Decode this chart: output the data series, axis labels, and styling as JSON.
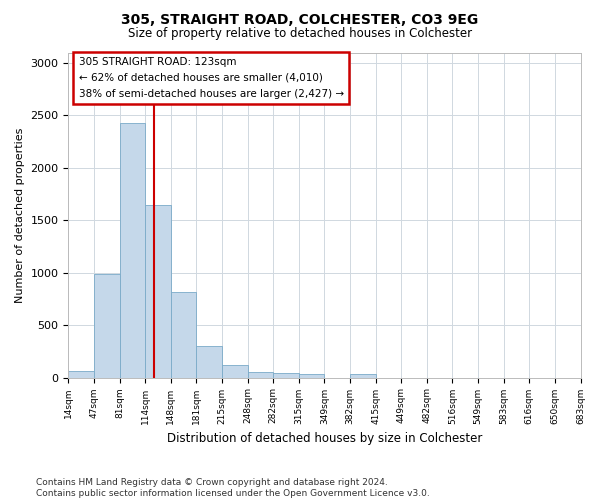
{
  "title": "305, STRAIGHT ROAD, COLCHESTER, CO3 9EG",
  "subtitle": "Size of property relative to detached houses in Colchester",
  "xlabel": "Distribution of detached houses by size in Colchester",
  "ylabel": "Number of detached properties",
  "bar_values": [
    60,
    990,
    2430,
    1650,
    820,
    300,
    120,
    50,
    45,
    30,
    0,
    35,
    0,
    0,
    0,
    0,
    0,
    0,
    0,
    0
  ],
  "bin_labels": [
    "14sqm",
    "47sqm",
    "81sqm",
    "114sqm",
    "148sqm",
    "181sqm",
    "215sqm",
    "248sqm",
    "282sqm",
    "315sqm",
    "349sqm",
    "382sqm",
    "415sqm",
    "449sqm",
    "482sqm",
    "516sqm",
    "549sqm",
    "583sqm",
    "616sqm",
    "650sqm",
    "683sqm"
  ],
  "bar_color": "#c5d8ea",
  "bar_edgecolor": "#7aaac8",
  "ylim": [
    0,
    3100
  ],
  "yticks": [
    0,
    500,
    1000,
    1500,
    2000,
    2500,
    3000
  ],
  "annotation_box_text": "305 STRAIGHT ROAD: 123sqm\n← 62% of detached houses are smaller (4,010)\n38% of semi-detached houses are larger (2,427) →",
  "annotation_box_color": "#cc0000",
  "vline_x_index": 2.85,
  "footnote": "Contains HM Land Registry data © Crown copyright and database right 2024.\nContains public sector information licensed under the Open Government Licence v3.0.",
  "background_color": "#ffffff",
  "plot_background": "#ffffff",
  "grid_color": "#d0d8e0"
}
